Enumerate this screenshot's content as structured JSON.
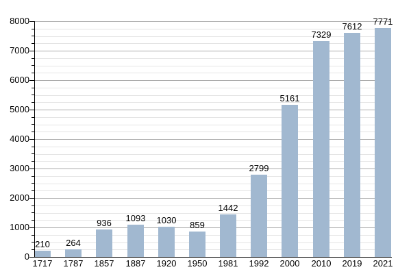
{
  "chart_data": {
    "type": "bar",
    "title": "",
    "xlabel": "",
    "ylabel": "",
    "categories": [
      "1717",
      "1787",
      "1857",
      "1887",
      "1920",
      "1950",
      "1981",
      "1992",
      "2000",
      "2010",
      "2019",
      "2021"
    ],
    "values": [
      210,
      264,
      936,
      1093,
      1030,
      859,
      1442,
      2799,
      5161,
      7329,
      7612,
      7771
    ],
    "ylim": [
      0,
      8000
    ],
    "ytick_major_step": 1000,
    "ytick_minor_step": 250,
    "ytick_labels": [
      "0",
      "1000",
      "2000",
      "3000",
      "4000",
      "5000",
      "6000",
      "7000",
      "8000"
    ],
    "grid": "horizontal",
    "legend": "none",
    "colors": {
      "bar_fill": "#a1b8d0",
      "major_gridline": "#aaaaaa",
      "minor_gridline": "#e4e4e4",
      "axis": "#000000",
      "text": "#000000",
      "background": "#ffffff"
    }
  }
}
